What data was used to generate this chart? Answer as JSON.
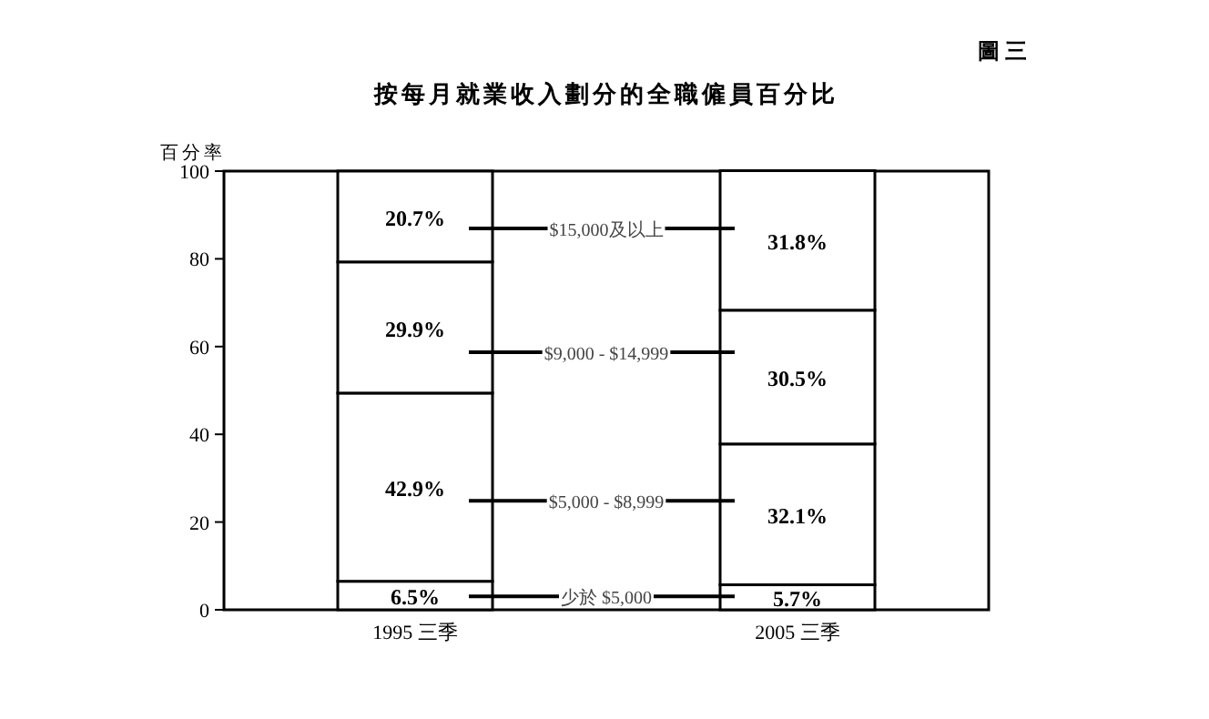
{
  "chart_data": {
    "type": "bar",
    "title": "按每月就業收入劃分的全職僱員百分比",
    "annotations": [
      "圖三"
    ],
    "ylabel": "百分率",
    "categories": [
      "1995 三季",
      "2005 三季"
    ],
    "stacked": true,
    "legend": "center",
    "ylim": [
      0,
      100
    ],
    "yticks": [
      0,
      20,
      40,
      60,
      80,
      100
    ],
    "series": [
      {
        "name": "少於 $5,000",
        "color": "#ffffff",
        "values": [
          6.5,
          5.7
        ],
        "value_labels": [
          "6.5%",
          "5.7%"
        ]
      },
      {
        "name": "$5,000 - $8,999",
        "color": "#ffffff",
        "values": [
          42.9,
          32.1
        ],
        "value_labels": [
          "42.9%",
          "32.1%"
        ]
      },
      {
        "name": "$9,000 - $14,999",
        "color": "#ffffff",
        "values": [
          29.9,
          30.5
        ],
        "value_labels": [
          "29.9%",
          "30.5%"
        ]
      },
      {
        "name": "$15,000及以上",
        "color": "#ffffff",
        "values": [
          20.7,
          31.8
        ],
        "value_labels": [
          "20.7%",
          "31.8%"
        ]
      }
    ]
  }
}
